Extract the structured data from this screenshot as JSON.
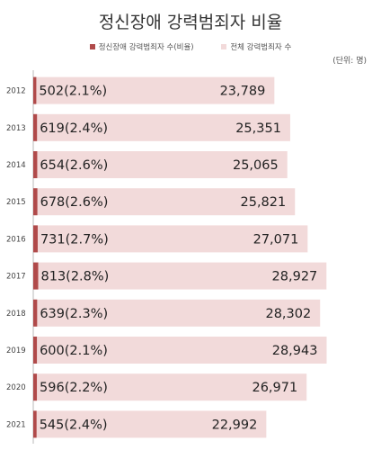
{
  "chart_data": {
    "type": "bar",
    "orientation": "horizontal",
    "title": "정신장애 강력범죄자 비율",
    "unit_label": "(단위: 명)",
    "categories": [
      "2012",
      "2013",
      "2014",
      "2015",
      "2016",
      "2017",
      "2018",
      "2019",
      "2020",
      "2021"
    ],
    "series": [
      {
        "name": "정신장애 강력범죄자 수(비율)",
        "color": "#b04a4a",
        "values": [
          502,
          619,
          654,
          678,
          731,
          813,
          639,
          600,
          596,
          545
        ],
        "labels": [
          "502(2.1%)",
          "619(2.4%)",
          "654(2.6%)",
          "678(2.6%)",
          "731(2.7%)",
          "813(2.8%)",
          "639(2.3%)",
          "600(2.1%)",
          "596(2.2%)",
          "545(2.4%)"
        ]
      },
      {
        "name": "전체 강력범죄자 수",
        "color": "#f2dada",
        "values": [
          23789,
          25351,
          25065,
          25821,
          27071,
          28927,
          28302,
          28943,
          26971,
          22992
        ],
        "labels": [
          "23,789",
          "25,351",
          "25,065",
          "25,821",
          "27,071",
          "28,927",
          "28,302",
          "28,943",
          "26,971",
          "22,992"
        ]
      }
    ],
    "legend_position": "top-center",
    "grid": false
  }
}
